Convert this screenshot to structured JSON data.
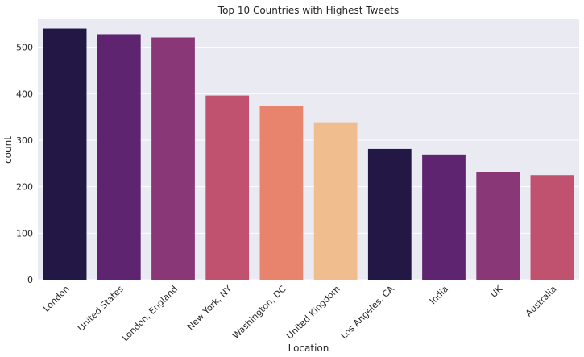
{
  "chart_data": {
    "type": "bar",
    "title": "Top 10 Countries with Highest Tweets",
    "xlabel": "Location",
    "ylabel": "count",
    "categories": [
      "London",
      "United States",
      "London, England",
      "New York, NY",
      "Washington, DC",
      "United Kingdom",
      "Los Angeles, CA",
      "India",
      "UK",
      "Australia"
    ],
    "values": [
      540,
      528,
      521,
      396,
      373,
      337,
      281,
      269,
      232,
      225
    ],
    "colors": [
      "#231845",
      "#5e2470",
      "#8a3777",
      "#c0526f",
      "#e8836e",
      "#f0bd8f",
      "#231845",
      "#5e2470",
      "#8a3777",
      "#c0526f"
    ],
    "ylim": [
      0,
      560
    ],
    "yticks": [
      0,
      100,
      200,
      300,
      400,
      500
    ],
    "grid": true,
    "background": "#eaeaf2"
  }
}
